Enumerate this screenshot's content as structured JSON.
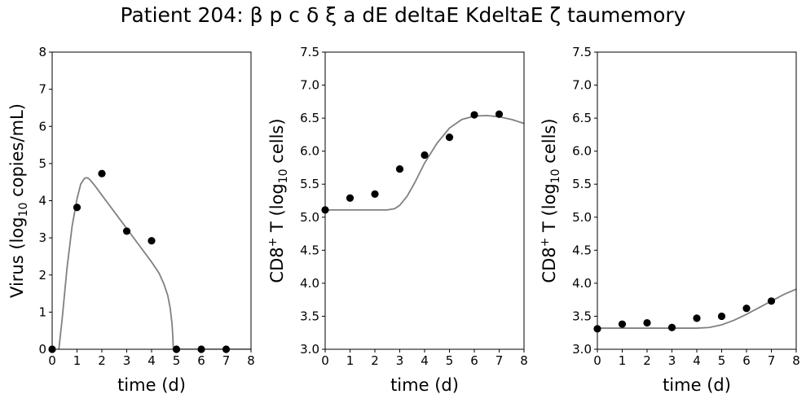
{
  "title": "Patient 204: β p c δ ξ a dE deltaE KdeltaE ζ taumemory",
  "colors": {
    "model_line": "#808080",
    "data_points": "#000000",
    "axes": "#000000"
  },
  "chart_data": [
    {
      "type": "scatter",
      "xlabel": "time (d)",
      "ylabel_main": "Virus (log",
      "ylabel_sub": "10",
      "ylabel_rest": " copies/mL)",
      "xlim": [
        0,
        8
      ],
      "ylim": [
        0,
        8
      ],
      "xticks": [
        "0",
        "1",
        "2",
        "3",
        "4",
        "5",
        "6",
        "7",
        "8"
      ],
      "yticks": [
        "0",
        "1",
        "2",
        "3",
        "4",
        "5",
        "6",
        "7",
        "8"
      ],
      "series": [
        {
          "kind": "points",
          "x": [
            0,
            1,
            2,
            3,
            4,
            5,
            6,
            7
          ],
          "y": [
            0,
            3.82,
            4.73,
            3.18,
            2.92,
            0,
            0,
            0
          ]
        },
        {
          "kind": "line",
          "x": [
            0.27,
            0.4,
            0.6,
            0.8,
            1.0,
            1.15,
            1.3,
            1.4,
            1.5,
            1.7,
            2.0,
            2.5,
            3.0,
            3.5,
            4.0,
            4.3,
            4.5,
            4.65,
            4.75,
            4.82,
            4.85,
            4.87,
            4.88,
            8.0
          ],
          "y": [
            0,
            0.8,
            2.2,
            3.3,
            4.05,
            4.45,
            4.6,
            4.62,
            4.58,
            4.42,
            4.15,
            3.7,
            3.25,
            2.8,
            2.35,
            2.05,
            1.75,
            1.45,
            1.1,
            0.7,
            0.4,
            0.1,
            0,
            0
          ]
        }
      ]
    },
    {
      "type": "scatter",
      "xlabel": "time (d)",
      "ylabel_main": "CD8",
      "ylabel_sup": "+",
      "ylabel_rest1": " T (log",
      "ylabel_sub": "10",
      "ylabel_rest2": " cells)",
      "xlim": [
        0,
        8
      ],
      "ylim": [
        3.0,
        7.5
      ],
      "xticks": [
        "0",
        "1",
        "2",
        "3",
        "4",
        "5",
        "6",
        "7",
        "8"
      ],
      "yticks": [
        "3.0",
        "3.5",
        "4.0",
        "4.5",
        "5.0",
        "5.5",
        "6.0",
        "6.5",
        "7.0",
        "7.5"
      ],
      "series": [
        {
          "kind": "points",
          "x": [
            0,
            1,
            2,
            3,
            4,
            5,
            6,
            7
          ],
          "y": [
            5.11,
            5.29,
            5.35,
            5.73,
            5.94,
            6.21,
            6.55,
            6.56
          ]
        },
        {
          "kind": "line",
          "x": [
            0,
            2.5,
            2.8,
            3.0,
            3.3,
            3.6,
            4.0,
            4.5,
            5.0,
            5.5,
            6.0,
            6.5,
            7.0,
            7.5,
            8.0
          ],
          "y": [
            5.11,
            5.11,
            5.13,
            5.18,
            5.32,
            5.52,
            5.82,
            6.12,
            6.35,
            6.48,
            6.53,
            6.54,
            6.52,
            6.48,
            6.42
          ]
        }
      ]
    },
    {
      "type": "scatter",
      "xlabel": "time (d)",
      "ylabel_main": "CD8",
      "ylabel_sup": "+",
      "ylabel_rest1": " T (log",
      "ylabel_sub": "10",
      "ylabel_rest2": " cells)",
      "xlim": [
        0,
        8
      ],
      "ylim": [
        3.0,
        7.5
      ],
      "xticks": [
        "0",
        "1",
        "2",
        "3",
        "4",
        "5",
        "6",
        "7",
        "8"
      ],
      "yticks": [
        "3.0",
        "3.5",
        "4.0",
        "4.5",
        "5.0",
        "5.5",
        "6.0",
        "6.5",
        "7.0",
        "7.5"
      ],
      "series": [
        {
          "kind": "points",
          "x": [
            0,
            1,
            2,
            3,
            4,
            5,
            6,
            7
          ],
          "y": [
            3.31,
            3.38,
            3.4,
            3.33,
            3.47,
            3.5,
            3.62,
            3.73
          ]
        },
        {
          "kind": "line",
          "x": [
            0,
            4.0,
            4.5,
            5.0,
            5.5,
            6.0,
            6.5,
            7.0,
            7.5,
            8.0
          ],
          "y": [
            3.32,
            3.32,
            3.33,
            3.37,
            3.44,
            3.53,
            3.63,
            3.73,
            3.83,
            3.91
          ]
        }
      ]
    }
  ]
}
